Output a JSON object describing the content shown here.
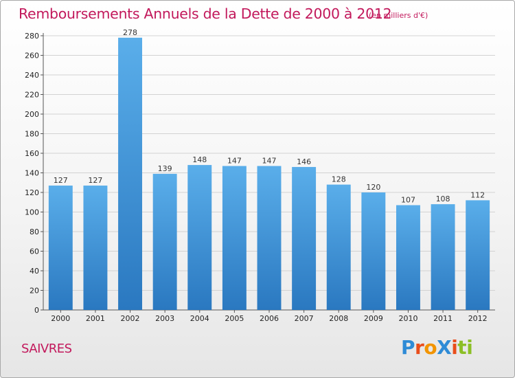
{
  "title": "Remboursements Annuels de la Dette de 2000 à 2012",
  "unit": "(en milliers d'€)",
  "city": "SAIVRES",
  "logo": {
    "letters": [
      {
        "char": "P",
        "color": "#2e8bd6"
      },
      {
        "char": "r",
        "color": "#e94e1b"
      },
      {
        "char": "o",
        "color": "#f29400"
      },
      {
        "char": "X",
        "color": "#2e8bd6"
      },
      {
        "char": "i",
        "color": "#e94e1b"
      },
      {
        "char": "t",
        "color": "#8cbf26"
      },
      {
        "char": "i",
        "color": "#8cbf26"
      }
    ]
  },
  "colors": {
    "title": "#c2185b",
    "bar_light": "#5aaeea",
    "bar_dark": "#2a78c0",
    "grid": "#d2d2d2"
  },
  "chart_data": {
    "type": "bar",
    "title": "Remboursements Annuels de la Dette de 2000 à 2012",
    "categories": [
      "2000",
      "2001",
      "2002",
      "2003",
      "2004",
      "2005",
      "2006",
      "2007",
      "2008",
      "2009",
      "2010",
      "2011",
      "2012"
    ],
    "values": [
      127,
      127,
      278,
      139,
      148,
      147,
      147,
      146,
      128,
      120,
      107,
      108,
      112
    ],
    "ylim": [
      0,
      280
    ],
    "yticks": [
      0,
      20,
      40,
      60,
      80,
      100,
      120,
      140,
      160,
      180,
      200,
      220,
      240,
      260,
      280
    ],
    "grid": true,
    "data_labels": true
  }
}
